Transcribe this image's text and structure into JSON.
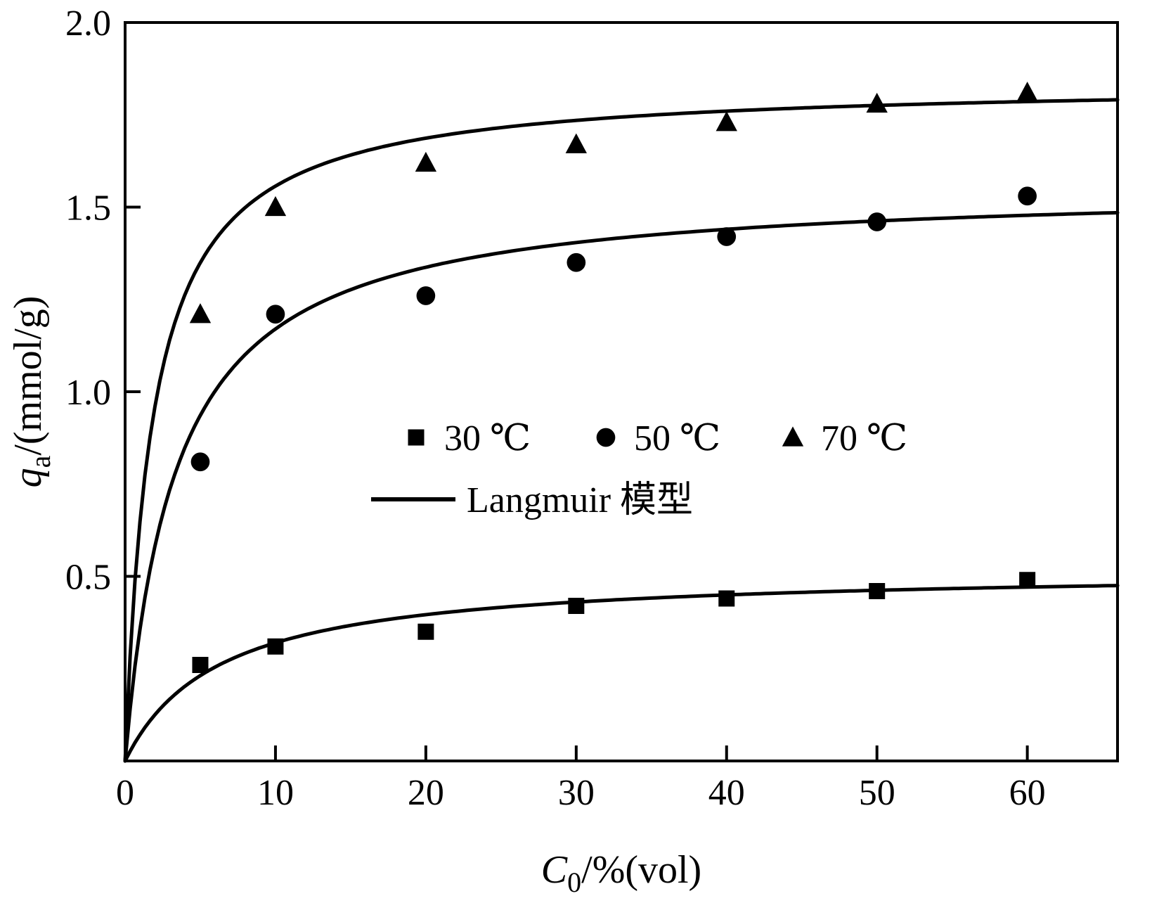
{
  "chart_data": {
    "type": "scatter",
    "title": "",
    "xlabel": {
      "var": "C",
      "sub": "0",
      "rest": "/%(vol)"
    },
    "ylabel": {
      "var": "q",
      "sub": "a",
      "rest": "/(mmol/g)"
    },
    "xlim": [
      0,
      66
    ],
    "ylim": [
      0,
      2.0
    ],
    "grid": false,
    "x_ticks": [
      {
        "v": 0,
        "label": "0"
      },
      {
        "v": 10,
        "label": "10"
      },
      {
        "v": 20,
        "label": "20"
      },
      {
        "v": 30,
        "label": "30"
      },
      {
        "v": 40,
        "label": "40"
      },
      {
        "v": 50,
        "label": "50"
      },
      {
        "v": 60,
        "label": "60"
      }
    ],
    "y_ticks": [
      {
        "v": 0.5,
        "label": "0.5"
      },
      {
        "v": 1.0,
        "label": "1.0"
      },
      {
        "v": 1.5,
        "label": "1.5"
      },
      {
        "v": 2.0,
        "label": "2.0"
      }
    ],
    "series": [
      {
        "name": "30 ℃",
        "marker": "square",
        "x": [
          5,
          10,
          20,
          30,
          40,
          50,
          60
        ],
        "y": [
          0.26,
          0.31,
          0.35,
          0.42,
          0.44,
          0.46,
          0.49
        ],
        "langmuir": {
          "qm": 0.52,
          "b": 0.16
        }
      },
      {
        "name": "50 ℃",
        "marker": "circle",
        "x": [
          5,
          10,
          20,
          30,
          40,
          50,
          60
        ],
        "y": [
          0.81,
          1.21,
          1.26,
          1.35,
          1.42,
          1.46,
          1.53
        ],
        "langmuir": {
          "qm": 1.56,
          "b": 0.3
        }
      },
      {
        "name": "70 ℃",
        "marker": "triangle",
        "x": [
          5,
          10,
          20,
          30,
          40,
          50,
          60
        ],
        "y": [
          1.21,
          1.5,
          1.62,
          1.67,
          1.73,
          1.78,
          1.81
        ],
        "langmuir": {
          "qm": 1.84,
          "b": 0.55
        }
      }
    ],
    "legend": {
      "position": "inside-center",
      "model_label": "Langmuir 模型"
    },
    "colors": {
      "line": "#000000",
      "marker": "#000000",
      "background": "#ffffff"
    }
  }
}
